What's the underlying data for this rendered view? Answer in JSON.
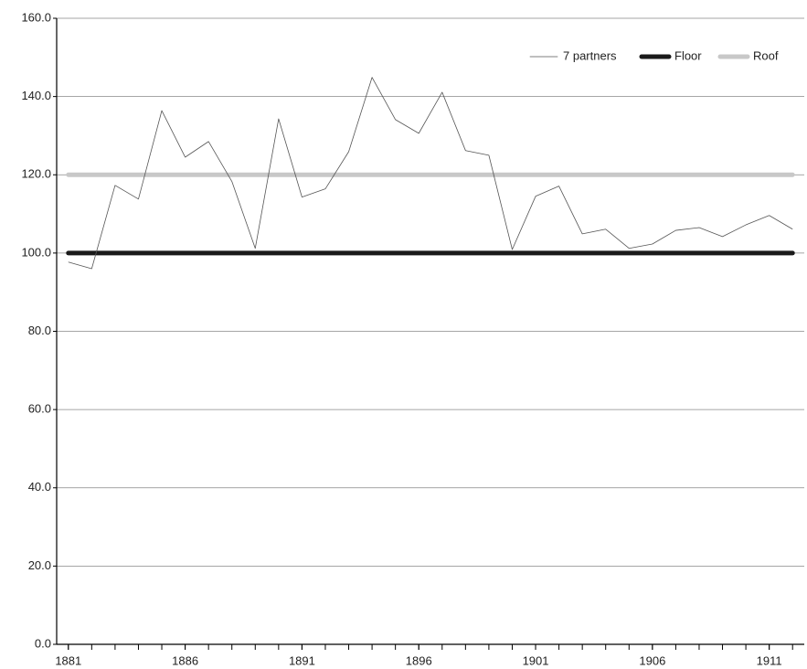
{
  "chart_data": {
    "type": "line",
    "x": [
      1881,
      1882,
      1883,
      1884,
      1885,
      1886,
      1887,
      1888,
      1889,
      1890,
      1891,
      1892,
      1893,
      1894,
      1895,
      1896,
      1897,
      1898,
      1899,
      1900,
      1901,
      1902,
      1903,
      1904,
      1905,
      1906,
      1907,
      1908,
      1909,
      1910,
      1911,
      1912
    ],
    "series": [
      {
        "name": "7 partners",
        "color": "#555555",
        "width": 0.8,
        "values": [
          97.7,
          96.0,
          117.3,
          113.8,
          136.4,
          124.5,
          128.5,
          118.3,
          101.2,
          134.3,
          114.3,
          116.4,
          125.9,
          144.9,
          134.1,
          130.6,
          141.1,
          126.2,
          125.0,
          100.9,
          114.5,
          117.1,
          104.9,
          106.1,
          101.2,
          102.3,
          105.8,
          106.5,
          104.2,
          107.2,
          109.6,
          106.1
        ]
      },
      {
        "name": "Floor",
        "color": "#1a1a1a",
        "width": 5,
        "values": [
          100,
          100,
          100,
          100,
          100,
          100,
          100,
          100,
          100,
          100,
          100,
          100,
          100,
          100,
          100,
          100,
          100,
          100,
          100,
          100,
          100,
          100,
          100,
          100,
          100,
          100,
          100,
          100,
          100,
          100,
          100,
          100
        ]
      },
      {
        "name": "Roof",
        "color": "#c8c8c8",
        "width": 5,
        "values": [
          120,
          120,
          120,
          120,
          120,
          120,
          120,
          120,
          120,
          120,
          120,
          120,
          120,
          120,
          120,
          120,
          120,
          120,
          120,
          120,
          120,
          120,
          120,
          120,
          120,
          120,
          120,
          120,
          120,
          120,
          120,
          120
        ]
      }
    ],
    "xlim": [
      1880.5,
      1912.5
    ],
    "xticks": [
      1881,
      1886,
      1891,
      1896,
      1901,
      1906,
      1911
    ],
    "ylim": [
      0,
      160
    ],
    "yticks": [
      {
        "value": 0,
        "label": "0.0"
      },
      {
        "value": 20,
        "label": "20.0"
      },
      {
        "value": 40,
        "label": "40.0"
      },
      {
        "value": 60,
        "label": "60.0"
      },
      {
        "value": 80,
        "label": "80.0"
      },
      {
        "value": 100,
        "label": "100.0"
      },
      {
        "value": 120,
        "label": "120.0"
      },
      {
        "value": 140,
        "label": "140.0"
      },
      {
        "value": 160,
        "label": "160.0"
      }
    ],
    "grid": true,
    "legend": "top-right"
  }
}
